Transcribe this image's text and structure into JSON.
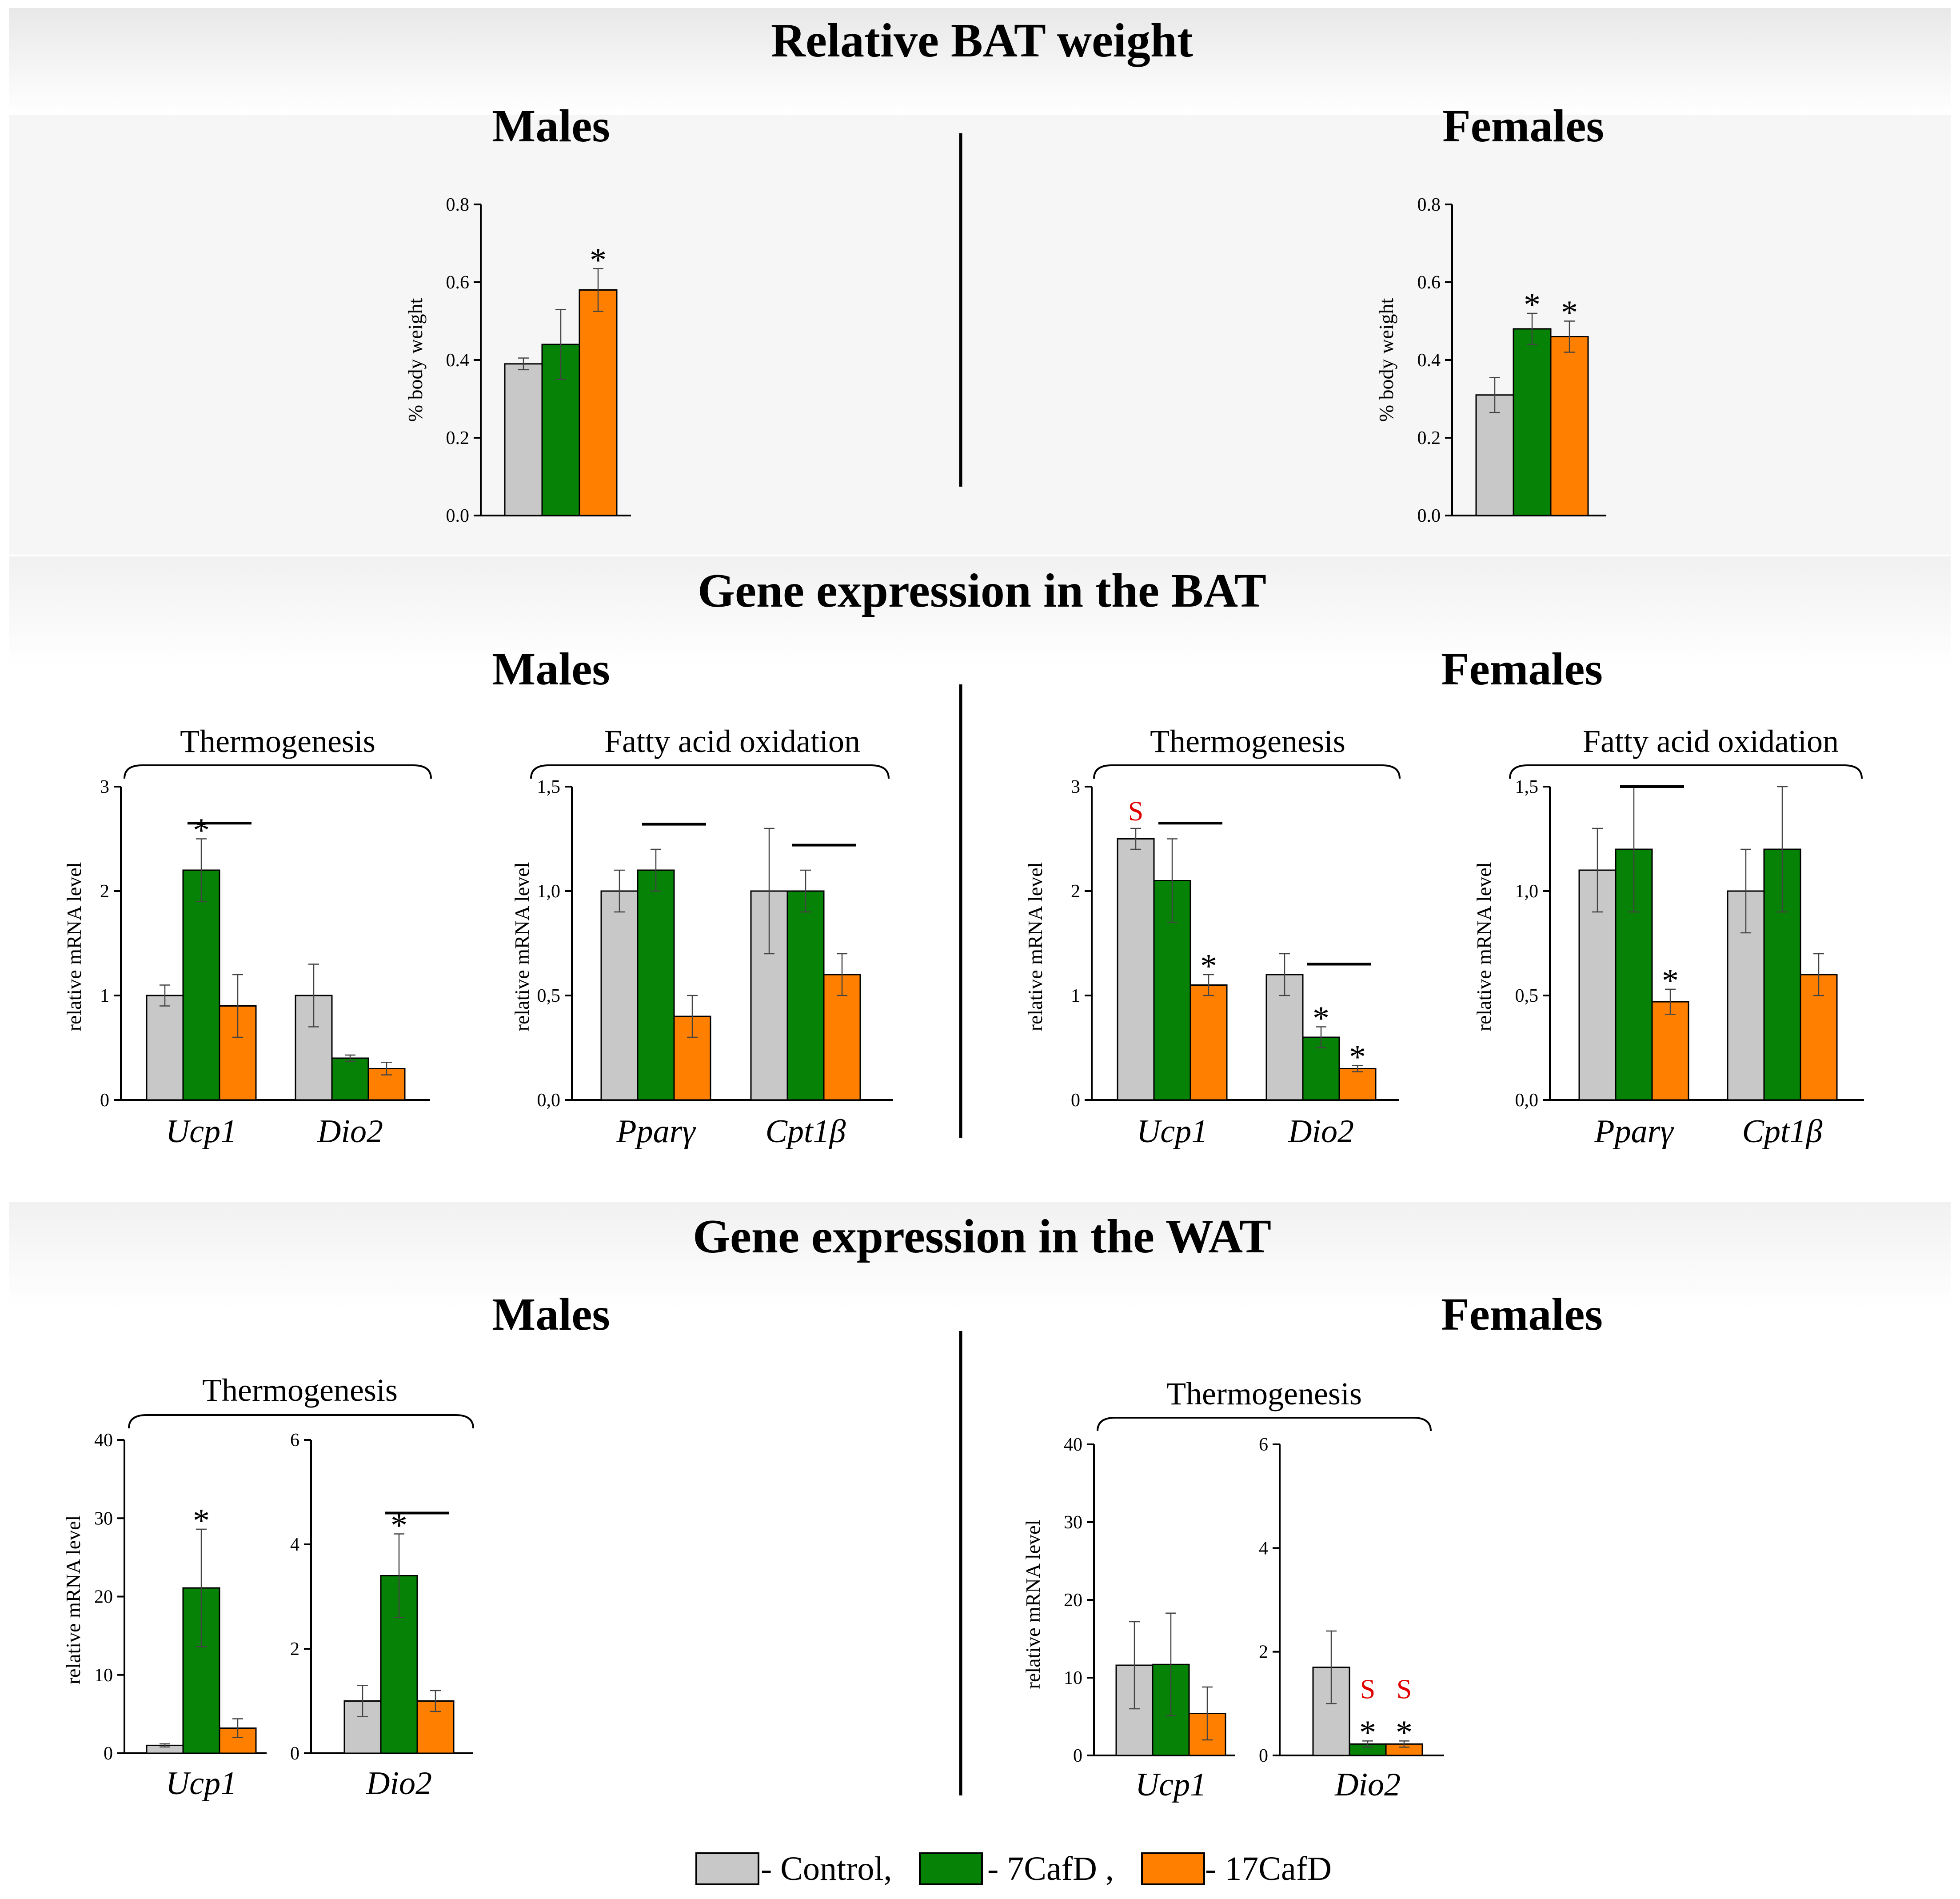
{
  "colors": {
    "control": "#c8c8c8",
    "cafd7": "#068206",
    "cafd17": "#ff8000",
    "significance_s": "#e00000"
  },
  "sections": {
    "bat_weight": {
      "title": "Relative BAT weight",
      "males": "Males",
      "females": "Females"
    },
    "bat_genes": {
      "title": "Gene expression in the BAT",
      "males": "Males",
      "females": "Females"
    },
    "wat_genes": {
      "title": "Gene expression in the WAT",
      "males": "Males",
      "females": "Females"
    }
  },
  "group_labels": {
    "bat_m_thermo": "Thermogenesis",
    "bat_m_fao": "Fatty acid oxidation",
    "bat_f_thermo": "Thermogenesis",
    "bat_f_fao": "Fatty acid oxidation",
    "wat_m_thermo": "Thermogenesis",
    "wat_f_thermo": "Thermogenesis"
  },
  "legend": {
    "control": "- Control,",
    "cafd7": "- 7CafD ,",
    "cafd17": "- 17CafD"
  },
  "chart_data": [
    {
      "id": "bw_m",
      "type": "bar",
      "title": "Relative BAT weight - Males",
      "ylabel": "% body weight",
      "ylim": [
        0,
        0.8
      ],
      "yticks": [
        "0.0",
        "0.2",
        "0.4",
        "0.6",
        "0.8"
      ],
      "categories": [
        ""
      ],
      "series": [
        {
          "name": "Control",
          "values": [
            0.39
          ],
          "errors": [
            0.015
          ]
        },
        {
          "name": "7CafD",
          "values": [
            0.44
          ],
          "errors": [
            0.09
          ]
        },
        {
          "name": "17CafD",
          "values": [
            0.58
          ],
          "errors": [
            0.055
          ]
        }
      ],
      "annotations": [
        {
          "category": 0,
          "series": 2,
          "text": "*"
        }
      ],
      "sigbars": []
    },
    {
      "id": "bw_f",
      "type": "bar",
      "title": "Relative BAT weight - Females",
      "ylabel": "% body weight",
      "ylim": [
        0,
        0.8
      ],
      "yticks": [
        "0.0",
        "0.2",
        "0.4",
        "0.6",
        "0.8"
      ],
      "categories": [
        ""
      ],
      "series": [
        {
          "name": "Control",
          "values": [
            0.31
          ],
          "errors": [
            0.045
          ]
        },
        {
          "name": "7CafD",
          "values": [
            0.48
          ],
          "errors": [
            0.04
          ]
        },
        {
          "name": "17CafD",
          "values": [
            0.46
          ],
          "errors": [
            0.04
          ]
        }
      ],
      "annotations": [
        {
          "category": 0,
          "series": 1,
          "text": "*"
        },
        {
          "category": 0,
          "series": 2,
          "text": "*"
        }
      ],
      "sigbars": []
    },
    {
      "id": "bat_m_thermo",
      "type": "bar",
      "title": "BAT Males Thermogenesis",
      "ylabel": "relative mRNA level",
      "ylim": [
        0,
        3
      ],
      "yticks": [
        "0",
        "1",
        "2",
        "3"
      ],
      "categories": [
        "Ucp1",
        "Dio2"
      ],
      "series": [
        {
          "name": "Control",
          "values": [
            1.0,
            1.0
          ],
          "errors": [
            0.1,
            0.3
          ]
        },
        {
          "name": "7CafD",
          "values": [
            2.2,
            0.4
          ],
          "errors": [
            0.3,
            0.03
          ]
        },
        {
          "name": "17CafD",
          "values": [
            0.9,
            0.3
          ],
          "errors": [
            0.3,
            0.06
          ]
        }
      ],
      "annotations": [
        {
          "category": 0,
          "series": 1,
          "text": "*"
        }
      ],
      "sigbars": [
        {
          "category": 0,
          "from": 1,
          "to": 2,
          "y": 2.65
        }
      ]
    },
    {
      "id": "bat_m_fao",
      "type": "bar",
      "title": "BAT Males Fatty acid oxidation",
      "ylabel": "relative mRNA level",
      "ylim": [
        0,
        1.5
      ],
      "yticks": [
        "0,0",
        "0,5",
        "1,0",
        "1,5"
      ],
      "categories": [
        "Pparγ",
        "Cpt1β"
      ],
      "series": [
        {
          "name": "Control",
          "values": [
            1.0,
            1.0
          ],
          "errors": [
            0.1,
            0.3
          ]
        },
        {
          "name": "7CafD",
          "values": [
            1.1,
            1.0
          ],
          "errors": [
            0.1,
            0.1
          ]
        },
        {
          "name": "17CafD",
          "values": [
            0.4,
            0.6
          ],
          "errors": [
            0.1,
            0.1
          ]
        }
      ],
      "annotations": [],
      "sigbars": [
        {
          "category": 0,
          "from": 1,
          "to": 2,
          "y": 1.32
        },
        {
          "category": 1,
          "from": 1,
          "to": 2,
          "y": 1.22
        }
      ]
    },
    {
      "id": "bat_f_thermo",
      "type": "bar",
      "title": "BAT Females Thermogenesis",
      "ylabel": "relative mRNA level",
      "ylim": [
        0,
        3
      ],
      "yticks": [
        "0",
        "1",
        "2",
        "3"
      ],
      "categories": [
        "Ucp1",
        "Dio2"
      ],
      "series": [
        {
          "name": "Control",
          "values": [
            2.5,
            1.2
          ],
          "errors": [
            0.1,
            0.2
          ]
        },
        {
          "name": "7CafD",
          "values": [
            2.1,
            0.6
          ],
          "errors": [
            0.4,
            0.1
          ]
        },
        {
          "name": "17CafD",
          "values": [
            1.1,
            0.3
          ],
          "errors": [
            0.1,
            0.03
          ]
        }
      ],
      "annotations": [
        {
          "category": 0,
          "series": 0,
          "text": "S",
          "color": "red"
        },
        {
          "category": 0,
          "series": 2,
          "text": "*"
        },
        {
          "category": 1,
          "series": 1,
          "text": "*"
        },
        {
          "category": 1,
          "series": 2,
          "text": "*"
        }
      ],
      "sigbars": [
        {
          "category": 0,
          "from": 1,
          "to": 2,
          "y": 2.65
        },
        {
          "category": 1,
          "from": 1,
          "to": 2,
          "y": 1.3
        }
      ]
    },
    {
      "id": "bat_f_fao",
      "type": "bar",
      "title": "BAT Females Fatty acid oxidation",
      "ylabel": "relative mRNA level",
      "ylim": [
        0,
        1.5
      ],
      "yticks": [
        "0,0",
        "0,5",
        "1,0",
        "1,5"
      ],
      "categories": [
        "Pparγ",
        "Cpt1β"
      ],
      "series": [
        {
          "name": "Control",
          "values": [
            1.1,
            1.0
          ],
          "errors": [
            0.2,
            0.2
          ]
        },
        {
          "name": "7CafD",
          "values": [
            1.2,
            1.2
          ],
          "errors": [
            0.3,
            0.3
          ]
        },
        {
          "name": "17CafD",
          "values": [
            0.47,
            0.6
          ],
          "errors": [
            0.06,
            0.1
          ]
        }
      ],
      "annotations": [
        {
          "category": 0,
          "series": 2,
          "text": "*"
        }
      ],
      "sigbars": [
        {
          "category": 0,
          "from": 1,
          "to": 2,
          "y": 1.5
        }
      ]
    },
    {
      "id": "wat_m_ucp1",
      "type": "bar",
      "title": "WAT Males Ucp1",
      "ylabel": "relative mRNA level",
      "ylim": [
        0,
        40
      ],
      "yticks": [
        "0",
        "10",
        "20",
        "30",
        "40"
      ],
      "categories": [
        "Ucp1"
      ],
      "series": [
        {
          "name": "Control",
          "values": [
            1.0
          ],
          "errors": [
            0.2
          ]
        },
        {
          "name": "7CafD",
          "values": [
            21.1
          ],
          "errors": [
            7.5
          ]
        },
        {
          "name": "17CafD",
          "values": [
            3.2
          ],
          "errors": [
            1.2
          ]
        }
      ],
      "annotations": [
        {
          "category": 0,
          "series": 1,
          "text": "*"
        }
      ],
      "sigbars": []
    },
    {
      "id": "wat_m_dio2",
      "type": "bar",
      "title": "WAT Males Dio2",
      "ylabel": "",
      "ylim": [
        0,
        6
      ],
      "yticks": [
        "0",
        "2",
        "4",
        "6"
      ],
      "categories": [
        "Dio2"
      ],
      "series": [
        {
          "name": "Control",
          "values": [
            1.0
          ],
          "errors": [
            0.3
          ]
        },
        {
          "name": "7CafD",
          "values": [
            3.4
          ],
          "errors": [
            0.8
          ]
        },
        {
          "name": "17CafD",
          "values": [
            1.0
          ],
          "errors": [
            0.2
          ]
        }
      ],
      "annotations": [
        {
          "category": 0,
          "series": 1,
          "text": "*"
        }
      ],
      "sigbars": [
        {
          "category": 0,
          "from": 1,
          "to": 2,
          "y": 4.6
        }
      ]
    },
    {
      "id": "wat_f_ucp1",
      "type": "bar",
      "title": "WAT Females Ucp1",
      "ylabel": "relative mRNA level",
      "ylim": [
        0,
        40
      ],
      "yticks": [
        "0",
        "10",
        "20",
        "30",
        "40"
      ],
      "categories": [
        "Ucp1"
      ],
      "series": [
        {
          "name": "Control",
          "values": [
            11.6
          ],
          "errors": [
            5.6
          ]
        },
        {
          "name": "7CafD",
          "values": [
            11.7
          ],
          "errors": [
            6.6
          ]
        },
        {
          "name": "17CafD",
          "values": [
            5.4
          ],
          "errors": [
            3.4
          ]
        }
      ],
      "annotations": [],
      "sigbars": []
    },
    {
      "id": "wat_f_dio2",
      "type": "bar",
      "title": "WAT Females Dio2",
      "ylabel": "",
      "ylim": [
        0,
        6
      ],
      "yticks": [
        "0",
        "2",
        "4",
        "6"
      ],
      "categories": [
        "Dio2"
      ],
      "series": [
        {
          "name": "Control",
          "values": [
            1.7
          ],
          "errors": [
            0.7
          ]
        },
        {
          "name": "7CafD",
          "values": [
            0.22
          ],
          "errors": [
            0.06
          ]
        },
        {
          "name": "17CafD",
          "values": [
            0.22
          ],
          "errors": [
            0.06
          ]
        }
      ],
      "annotations": [
        {
          "category": 0,
          "series": 1,
          "text": "*"
        },
        {
          "category": 0,
          "series": 1,
          "text": "S",
          "color": "red"
        },
        {
          "category": 0,
          "series": 2,
          "text": "*"
        },
        {
          "category": 0,
          "series": 2,
          "text": "S",
          "color": "red"
        }
      ],
      "sigbars": []
    }
  ]
}
